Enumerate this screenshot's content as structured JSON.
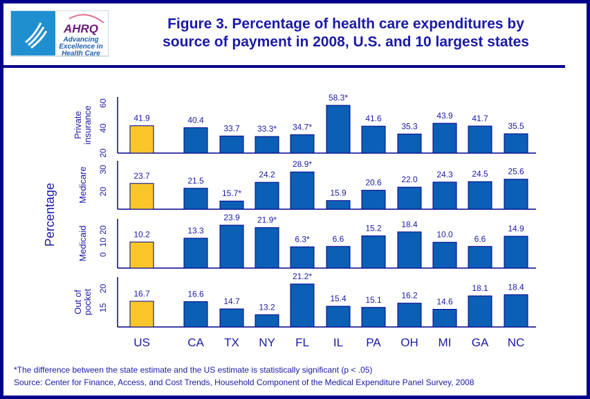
{
  "logo": {
    "text": [
      "AHRQ",
      "Advancing",
      "Excellence in",
      "Health Care"
    ]
  },
  "title_lines": [
    "Figure 3.  Percentage of health care expenditures by",
    "source of payment in 2008, U.S. and 10 largest states"
  ],
  "footnotes": {
    "significance": "*The difference between the state estimate and the US estimate is statistically significant (p < .05)",
    "source": "Source: Center for Finance, Access, and Cost Trends, Household Component of the Medical Expenditure Panel Survey, 2008"
  },
  "colors": {
    "us": "#f9c62a",
    "state": "#0b5fb4",
    "text": "#1a1aa6",
    "border": "#00008b"
  },
  "chart_data": {
    "type": "bar",
    "ylabel": "Percentage",
    "categories": [
      "US",
      "CA",
      "TX",
      "NY",
      "FL",
      "IL",
      "PA",
      "OH",
      "MI",
      "GA",
      "NC"
    ],
    "grid": false,
    "panels": [
      {
        "label": [
          "Private",
          "insurance"
        ],
        "ylim": [
          20,
          65
        ],
        "ticks": [
          20,
          40,
          60
        ],
        "values": [
          41.9,
          40.4,
          33.7,
          33.3,
          34.7,
          58.3,
          41.6,
          35.3,
          43.9,
          41.7,
          35.5
        ],
        "labels": [
          "41.9",
          "40.4",
          "33.7",
          "33.3*",
          "34.7*",
          "58.3*",
          "41.6",
          "35.3",
          "43.9",
          "41.7",
          "35.5"
        ]
      },
      {
        "label": [
          "Medicare"
        ],
        "ylim": [
          12,
          34
        ],
        "ticks": [
          20,
          30
        ],
        "values": [
          23.7,
          21.5,
          15.7,
          24.2,
          28.9,
          15.9,
          20.6,
          22.0,
          24.3,
          24.5,
          25.6
        ],
        "labels": [
          "23.7",
          "21.5",
          "15.7*",
          "24.2",
          "28.9*",
          "15.9",
          "20.6",
          "22.0",
          "24.3",
          "24.5",
          "25.6"
        ]
      },
      {
        "label": [
          "Medicaid"
        ],
        "ylim": [
          -11,
          29
        ],
        "ticks": [
          0,
          10,
          20
        ],
        "values": [
          10.2,
          13.3,
          23.9,
          21.9,
          6.3,
          6.6,
          15.2,
          18.4,
          10.0,
          6.6,
          14.9
        ],
        "labels": [
          "10.2",
          "13.3",
          "23.9",
          "21.9*",
          "6.3*",
          "6.6",
          "15.2",
          "18.4",
          "10.0",
          "6.6",
          "14.9"
        ]
      },
      {
        "label": [
          "Out of",
          "pocket"
        ],
        "ylim": [
          10,
          23
        ],
        "ticks": [
          15,
          20
        ],
        "values": [
          16.7,
          16.6,
          14.7,
          13.2,
          21.2,
          15.4,
          15.1,
          16.2,
          14.6,
          18.1,
          18.4
        ],
        "labels": [
          "16.7",
          "16.6",
          "14.7",
          "13.2",
          "21.2*",
          "15.4",
          "15.1",
          "16.2",
          "14.6",
          "18.1",
          "18.4"
        ]
      }
    ]
  }
}
